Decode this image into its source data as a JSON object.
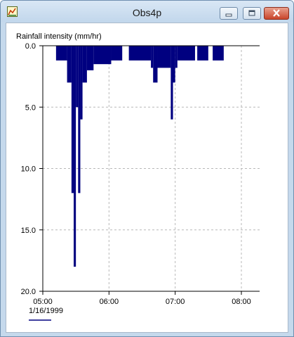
{
  "window": {
    "title": "Obs4p",
    "icon": "chart-app-icon",
    "controls": [
      "minimize-icon",
      "maximize-icon",
      "close-icon"
    ]
  },
  "chart_data": {
    "type": "bar",
    "title": "Rainfall intensity (mm/hr)",
    "ylabel": "",
    "xlabel": "",
    "y_inverted": true,
    "ylim": [
      0,
      20
    ],
    "y_ticks": [
      "0.0",
      "5.0",
      "10.0",
      "15.0",
      "20.0"
    ],
    "x_ticks": [
      "05:00",
      "06:00",
      "07:00",
      "08:00"
    ],
    "x_date_label": "1/16/1999",
    "grid": true,
    "color": "#000080",
    "series": [
      {
        "bars": [
          {
            "start": "05:12",
            "end": "05:22",
            "value": 1.2
          },
          {
            "start": "05:22",
            "end": "05:26",
            "value": 3.0
          },
          {
            "start": "05:26",
            "end": "05:28",
            "value": 12.0
          },
          {
            "start": "05:28",
            "end": "05:30",
            "value": 18.0
          },
          {
            "start": "05:30",
            "end": "05:32",
            "value": 5.0
          },
          {
            "start": "05:32",
            "end": "05:34",
            "value": 12.0
          },
          {
            "start": "05:34",
            "end": "05:36",
            "value": 6.0
          },
          {
            "start": "05:36",
            "end": "05:40",
            "value": 3.0
          },
          {
            "start": "05:40",
            "end": "05:46",
            "value": 2.0
          },
          {
            "start": "05:46",
            "end": "06:02",
            "value": 1.5
          },
          {
            "start": "06:02",
            "end": "06:12",
            "value": 1.2
          },
          {
            "start": "06:18",
            "end": "06:38",
            "value": 1.2
          },
          {
            "start": "06:38",
            "end": "06:40",
            "value": 1.8
          },
          {
            "start": "06:40",
            "end": "06:44",
            "value": 3.0
          },
          {
            "start": "06:44",
            "end": "06:56",
            "value": 1.8
          },
          {
            "start": "06:56",
            "end": "06:58",
            "value": 6.0
          },
          {
            "start": "06:58",
            "end": "07:00",
            "value": 3.0
          },
          {
            "start": "07:00",
            "end": "07:02",
            "value": 1.8
          },
          {
            "start": "07:02",
            "end": "07:18",
            "value": 1.2
          },
          {
            "start": "07:20",
            "end": "07:30",
            "value": 1.2
          },
          {
            "start": "07:34",
            "end": "07:44",
            "value": 1.2
          }
        ]
      }
    ]
  }
}
